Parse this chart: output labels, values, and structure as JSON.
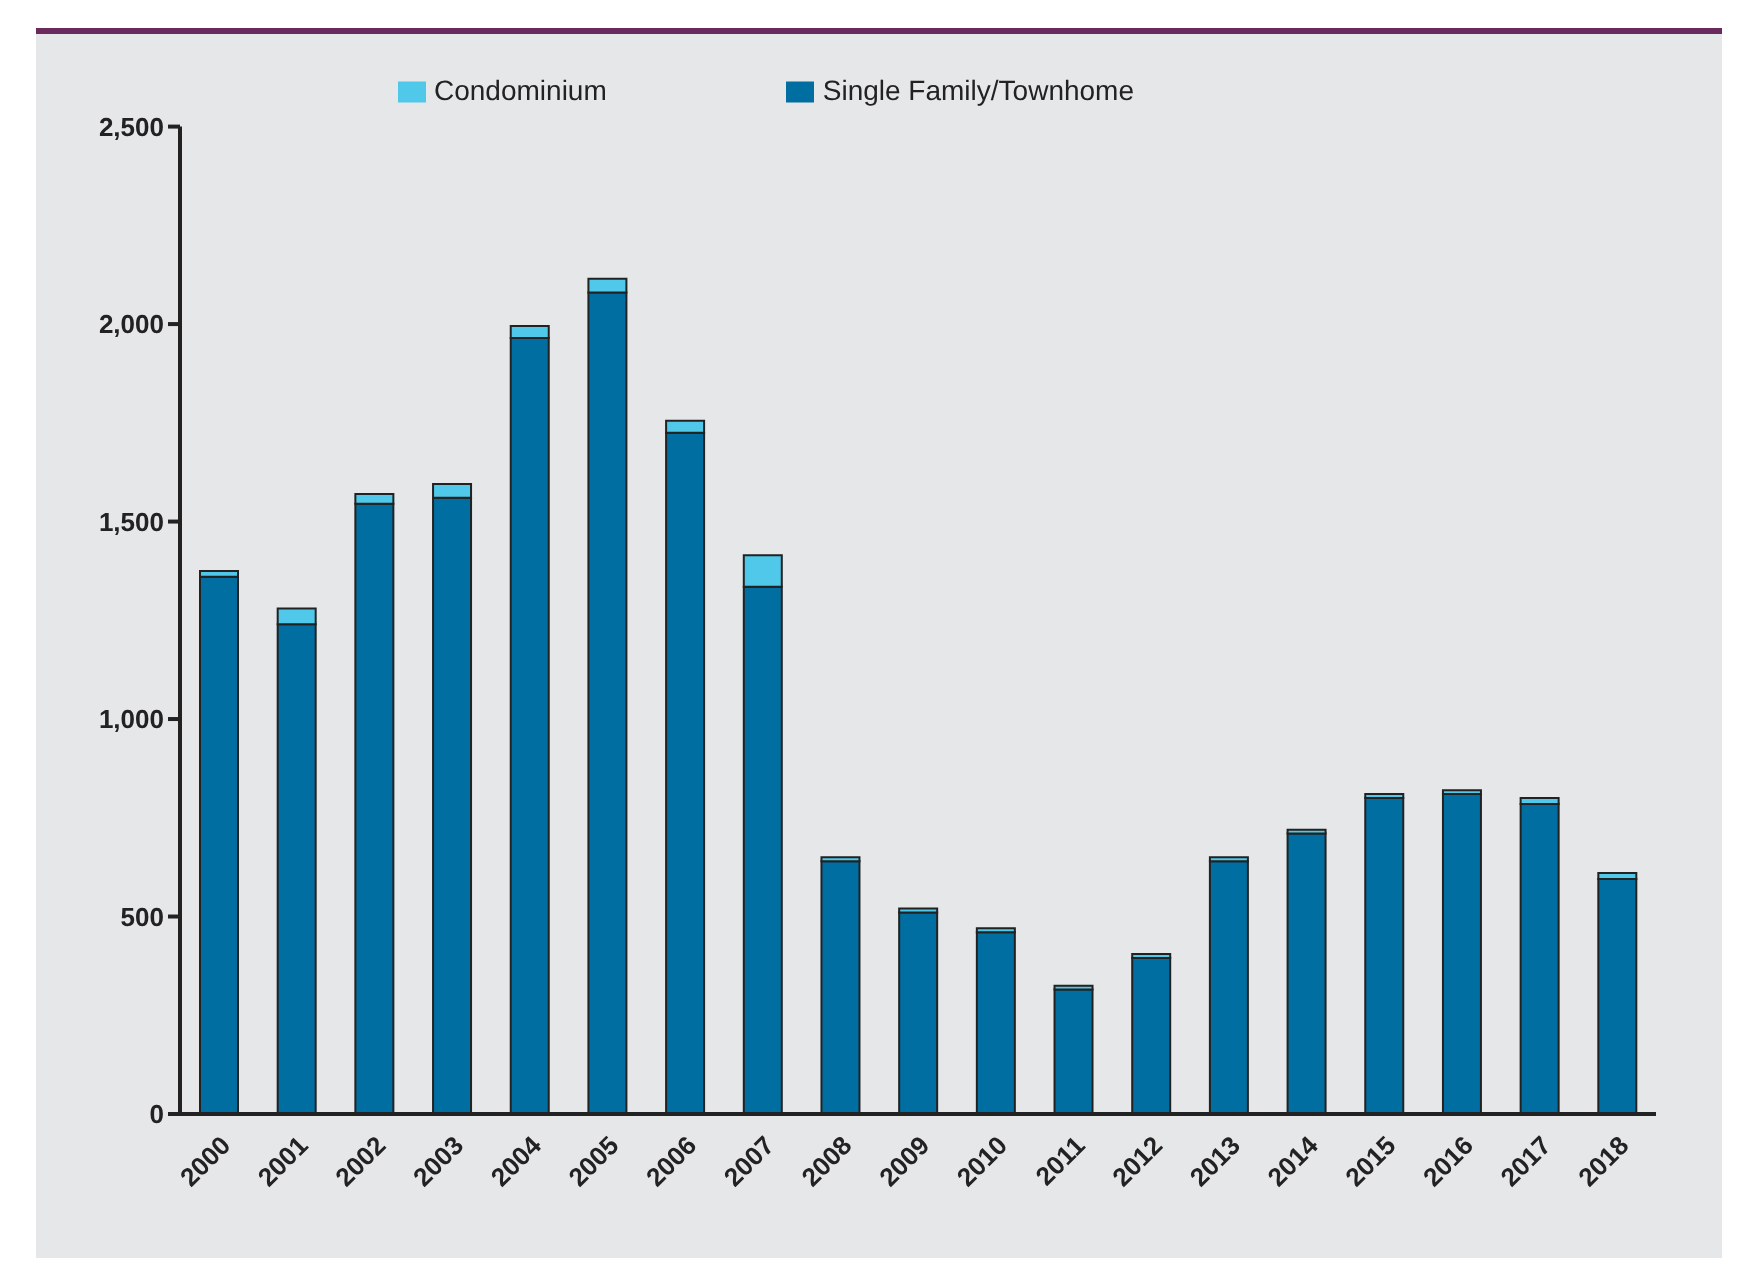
{
  "chart_data": {
    "type": "bar",
    "stacked": true,
    "categories": [
      "2000",
      "2001",
      "2002",
      "2003",
      "2004",
      "2005",
      "2006",
      "2007",
      "2008",
      "2009",
      "2010",
      "2011",
      "2012",
      "2013",
      "2014",
      "2015",
      "2016",
      "2017",
      "2018"
    ],
    "series": [
      {
        "name": "Single Family/Townhome",
        "color": "#006ea0",
        "values": [
          1360,
          1240,
          1545,
          1560,
          1965,
          2080,
          1725,
          1335,
          640,
          510,
          460,
          315,
          395,
          640,
          710,
          800,
          810,
          785,
          595
        ]
      },
      {
        "name": "Condominium",
        "color": "#4fc8e9",
        "values": [
          15,
          40,
          25,
          35,
          30,
          35,
          30,
          80,
          10,
          10,
          10,
          10,
          10,
          10,
          10,
          10,
          10,
          15,
          15
        ]
      }
    ],
    "ylim": [
      0,
      2500
    ],
    "yticks": [
      0,
      500,
      {
        "value": 1000,
        "label": "1,000"
      },
      {
        "value": 1500,
        "label": "1,500"
      },
      {
        "value": 2000,
        "label": "2,000"
      },
      {
        "value": 2500,
        "label": "2,500"
      }
    ],
    "grid": false,
    "legend": "top"
  }
}
